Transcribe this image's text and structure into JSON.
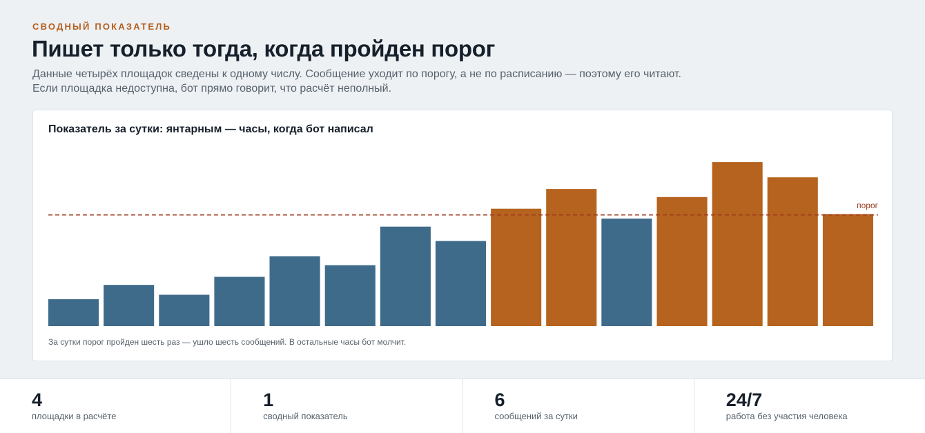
{
  "header": {
    "eyebrow": "СВОДНЫЙ ПОКАЗАТЕЛЬ",
    "title": "Пишет только тогда, когда пройден порог",
    "lede_line1": "Данные четырёх площадок сведены к одному числу. Сообщение уходит по порогу, а не по расписанию — поэтому его читают.",
    "lede_line2": "Если площадка недоступна, бот прямо говорит, что расчёт неполный."
  },
  "card": {
    "title": "Показатель за сутки: янтарным — часы, когда бот написал",
    "footnote": "За сутки порог пройден шесть раз — ушло шесть сообщений. В остальные часы бот молчит."
  },
  "chart_data": {
    "type": "bar",
    "title": "Показатель за сутки: янтарным — часы, когда бот написал",
    "xlabel": "",
    "ylabel": "",
    "ylim": [
      0,
      100
    ],
    "threshold": {
      "value": 62,
      "label": "порог"
    },
    "values": [
      15,
      23,
      17.5,
      27.5,
      39,
      34,
      55.5,
      47.5,
      65.5,
      76.5,
      60,
      72,
      91.5,
      83,
      62.5
    ],
    "above_threshold": [
      false,
      false,
      false,
      false,
      false,
      false,
      false,
      false,
      true,
      true,
      false,
      true,
      true,
      true,
      true
    ],
    "colors": {
      "normal": "#3f6b8a",
      "alert": "#b5631e",
      "threshold": "#9e3a1c"
    },
    "grid": false,
    "legend": "none"
  },
  "stats": [
    {
      "value": "4",
      "label": "площадки в расчёте"
    },
    {
      "value": "1",
      "label": "сводный показатель"
    },
    {
      "value": "6",
      "label": "сообщений за сутки"
    },
    {
      "value": "24/7",
      "label": "работа без участия человека"
    }
  ]
}
